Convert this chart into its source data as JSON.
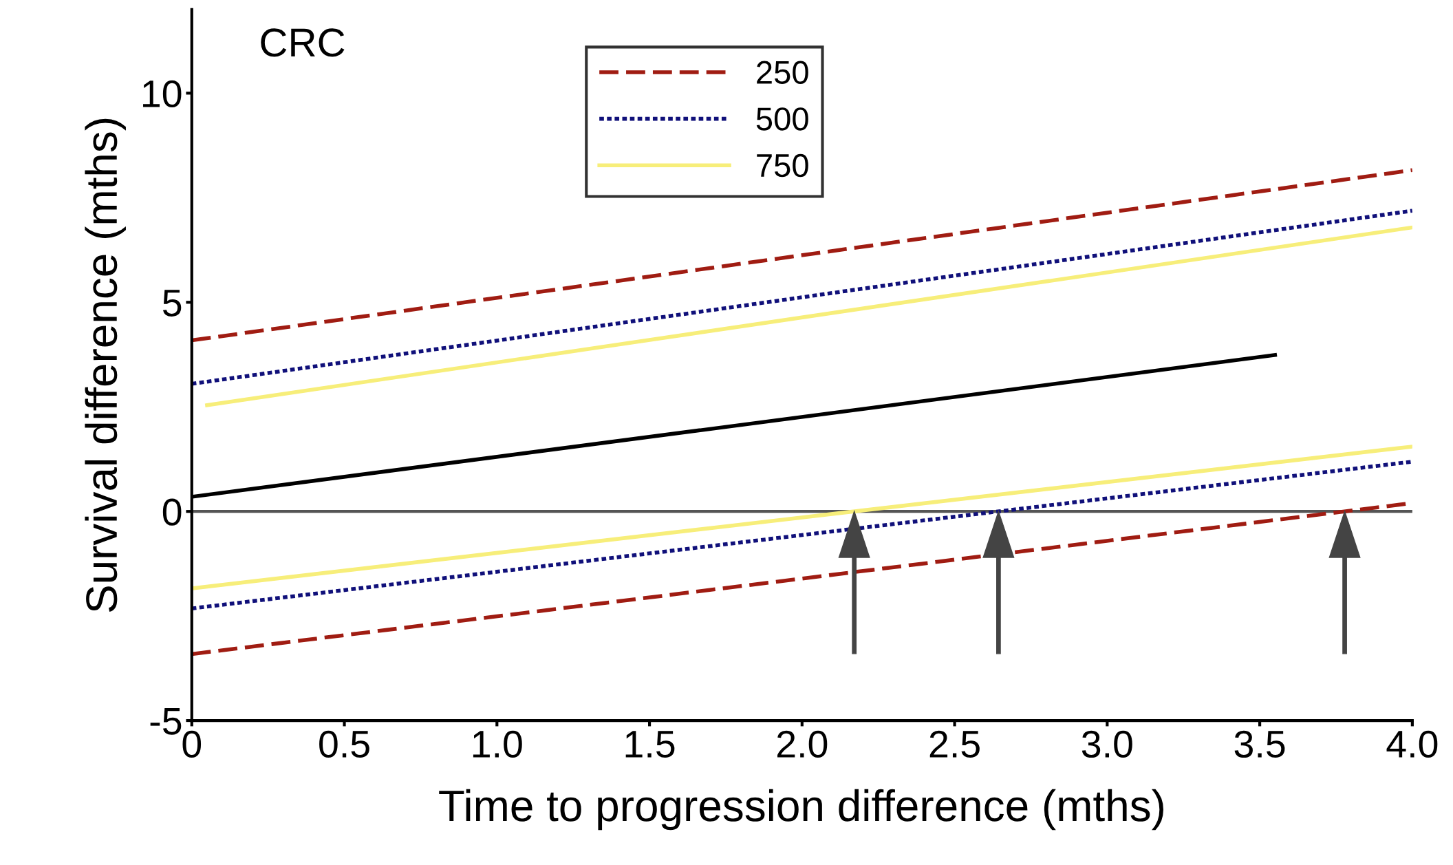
{
  "chart_data": {
    "type": "line",
    "title": "CRC",
    "xlabel": "Time to progression difference (mths)",
    "ylabel": "Survival difference (mths)",
    "series": [
      {
        "name": "250",
        "color": "#a01c12",
        "line_style": "dashed",
        "x": [
          0,
          4.0
        ],
        "values": [
          4.09,
          8.16
        ]
      },
      {
        "name": "500",
        "color": "#10107a",
        "line_style": "dotted",
        "x": [
          0,
          4.0
        ],
        "values": [
          3.05,
          7.19
        ]
      },
      {
        "name": "750",
        "color": "#f7ee7a",
        "line_style": "solid",
        "x": [
          0.05,
          4.0
        ],
        "values": [
          2.54,
          6.79
        ]
      },
      {
        "color": "#000000",
        "line_style": "solid",
        "x": [
          0,
          3.55
        ],
        "values": [
          0.35,
          3.74
        ]
      },
      {
        "color": "#f7ee7a",
        "line_style": "solid",
        "x": [
          0,
          4.0
        ],
        "values": [
          -1.84,
          1.55
        ]
      },
      {
        "color": "#10107a",
        "line_style": "dotted",
        "x": [
          0,
          4.0
        ],
        "values": [
          -2.32,
          1.19
        ]
      },
      {
        "color": "#a01c12",
        "line_style": "dashed",
        "x": [
          0,
          4.0
        ],
        "values": [
          -3.41,
          0.2
        ]
      }
    ],
    "ref_lines": [
      {
        "axis": "y",
        "value": 0,
        "color": "#555555"
      }
    ],
    "xlim": [
      0,
      4.0
    ],
    "xticks": [
      0,
      0.5,
      {
        "value": 1.0,
        "label": "1.0"
      },
      1.5,
      {
        "value": 2.0,
        "label": "2.0"
      },
      2.5,
      {
        "value": 3.0,
        "label": "3.0"
      },
      3.5,
      {
        "value": 4.0,
        "label": "4.0"
      }
    ],
    "ylim": [
      -5,
      12
    ],
    "yticks": [
      -5,
      0,
      5,
      10
    ],
    "grid": false,
    "legend": "top"
  }
}
